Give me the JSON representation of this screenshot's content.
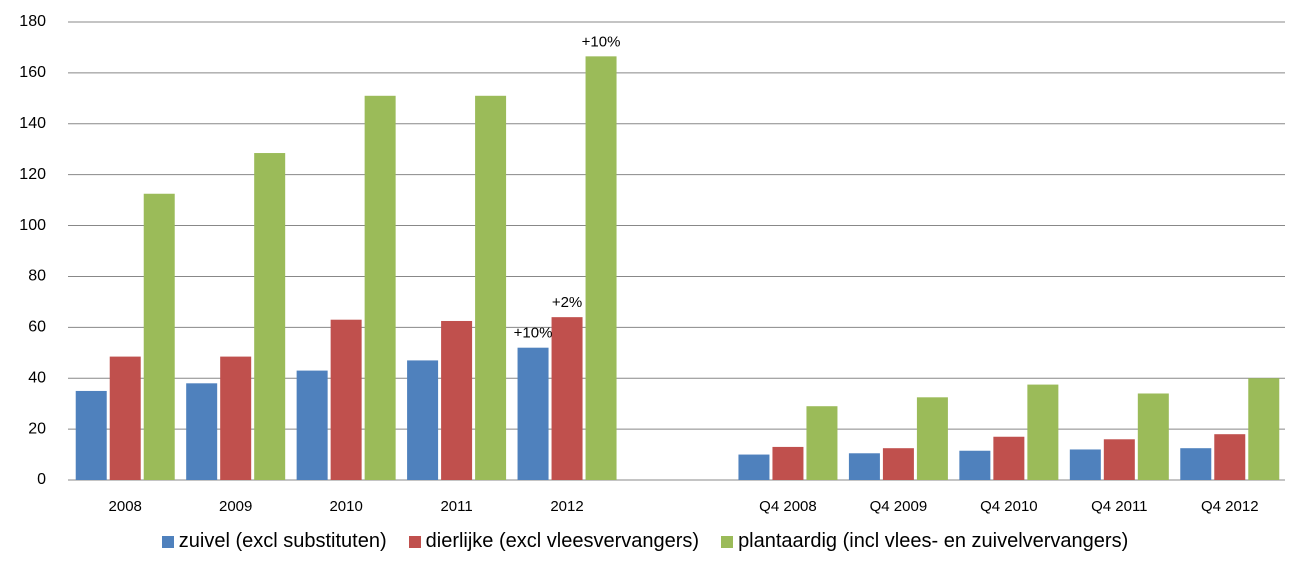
{
  "chart_data": {
    "type": "bar",
    "categories": [
      "2008",
      "2009",
      "2010",
      "2011",
      "2012",
      null,
      "Q4 2008",
      "Q4 2009",
      "Q4 2010",
      "Q4 2011",
      "Q4 2012"
    ],
    "series": [
      {
        "name": "zuivel (excl substituten)",
        "color": "#4f81bd",
        "values": [
          35,
          38,
          43,
          47,
          52,
          null,
          10,
          10.5,
          11.5,
          12,
          12.5
        ]
      },
      {
        "name": "dierlijke (excl vleesvervangers)",
        "color": "#c0504d",
        "values": [
          48.5,
          48.5,
          63,
          62.5,
          64,
          null,
          13,
          12.5,
          17,
          16,
          18
        ]
      },
      {
        "name": "plantaardig (incl vlees- en zuivelvervangers)",
        "color": "#9bbb59",
        "values": [
          112.5,
          128.5,
          151,
          151,
          166.5,
          null,
          29,
          32.5,
          37.5,
          34,
          40
        ]
      }
    ],
    "annotations": [
      {
        "text": "+10%",
        "series": 0,
        "category": 4
      },
      {
        "text": "+2%",
        "series": 1,
        "category": 4
      },
      {
        "text": "+10%",
        "series": 2,
        "category": 4
      }
    ],
    "ylim": [
      0,
      180
    ],
    "yticks": [
      0,
      20,
      40,
      60,
      80,
      100,
      120,
      140,
      160,
      180
    ],
    "grid": true,
    "legend": "bottom"
  }
}
